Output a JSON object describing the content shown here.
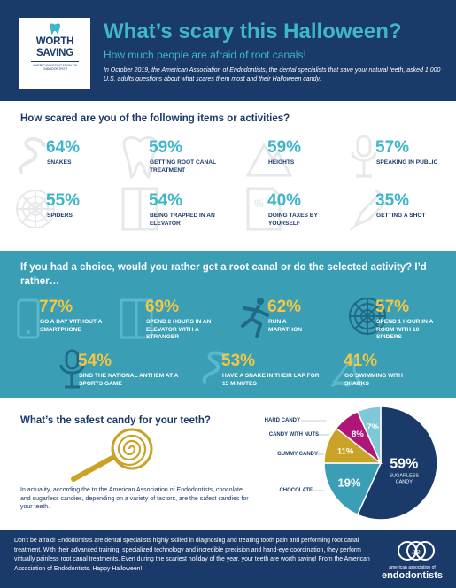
{
  "header": {
    "logo": {
      "title_line1": "WORTH",
      "title_line2": "SAVING",
      "sub_line1": "American Association of",
      "sub_line2": "Endodontists"
    },
    "title": "What’s scary this Halloween?",
    "subtitle": "How much people are afraid of root canals!",
    "intro": "In October 2019, the American Association of Endodontists, the dental specialists that save your natural teeth, asked 1,000 U.S. adults questions about what scares them most and their Halloween candy."
  },
  "fears": {
    "question": "How scared are you of the following items or activities?",
    "items": [
      {
        "pct": "64%",
        "label": "SNAKES",
        "icon": "snake-icon"
      },
      {
        "pct": "59%",
        "label": "GETTING ROOT CANAL TREATMENT",
        "icon": "tooth-icon"
      },
      {
        "pct": "59%",
        "label": "HEIGHTS",
        "icon": "mountain-icon"
      },
      {
        "pct": "57%",
        "label": "SPEAKING IN PUBLIC",
        "icon": "microphone-icon"
      },
      {
        "pct": "55%",
        "label": "SPIDERS",
        "icon": "spiderweb-icon"
      },
      {
        "pct": "54%",
        "label": "BEING TRAPPED IN AN ELEVATOR",
        "icon": "elevator-icon"
      },
      {
        "pct": "40%",
        "label": "DOING TAXES BY YOURSELF",
        "icon": "tax-form-icon"
      },
      {
        "pct": "35%",
        "label": "GETTING A SHOT",
        "icon": "syringe-icon"
      }
    ]
  },
  "rather": {
    "question": "If you had a choice, would you rather get a root canal or do the selected activity? I’d rather…",
    "items": [
      {
        "pct": "77%",
        "label": "GO A DAY WITHOUT A SMARTPHONE",
        "icon": "smartphone-icon"
      },
      {
        "pct": "69%",
        "label": "SPEND 2 HOURS IN AN ELEVATOR WITH A STRANGER",
        "icon": "elevator-icon"
      },
      {
        "pct": "62%",
        "label": "RUN A MARATHON",
        "icon": "runner-icon"
      },
      {
        "pct": "57%",
        "label": "SPEND 1 HOUR IN A ROOM WITH 10 SPIDERS",
        "icon": "spiderweb-icon"
      },
      {
        "pct": "54%",
        "label": "SING THE NATIONAL ANTHEM AT A SPORTS GAME",
        "icon": "microphone-icon"
      },
      {
        "pct": "53%",
        "label": "HAVE A SNAKE IN THEIR LAP FOR 15 MINUTES",
        "icon": "snake-icon"
      },
      {
        "pct": "41%",
        "label": "GO SWIMMING WITH SHARKS",
        "icon": "shark-fin-icon"
      }
    ]
  },
  "candy": {
    "question": "What’s the safest candy for your teeth?",
    "text": "In actuality, according the to the American Association of Endodontists, chocolate and sugarless candies, depending on a variety of factors, are the safest candies for your teeth."
  },
  "chart_data": {
    "type": "pie",
    "title": "",
    "series": [
      {
        "category": "SUGARLESS CANDY",
        "value": 59,
        "label": "59%",
        "sublabel": "SUGARLESS CANDY",
        "color": "#1a3a6a"
      },
      {
        "category": "CHOCOLATE",
        "value": 19,
        "label": "19%",
        "color": "#3a9eb5"
      },
      {
        "category": "GUMMY CANDY",
        "value": 11,
        "label": "11%",
        "color": "#c9a227"
      },
      {
        "category": "CANDY WITH NUTS",
        "value": 8,
        "label": "8%",
        "color": "#b0157a"
      },
      {
        "category": "HARD CANDY",
        "value": 7,
        "label": "7%",
        "color": "#7ec8d8"
      }
    ],
    "legend": "none"
  },
  "footer": {
    "text": "Don’t be afraid! Endodontists are dental specialists highly skilled in diagnosing and treating tooth pain and performing root canal treatment. With their advanced training, specialized technology and incredible precision and hand-eye coordination, they perform virtually painless root canal treatments. Even during the scariest holiday of the year, your teeth are worth saving! From the American Association of Endodontists. Happy Halloween!",
    "org_line1": "american association of",
    "org_line2": "endodontists"
  },
  "colors": {
    "navy": "#1a3a6a",
    "teal": "#3fb6c9",
    "teal_band": "#3a9eb5",
    "gold": "#f2c744"
  }
}
